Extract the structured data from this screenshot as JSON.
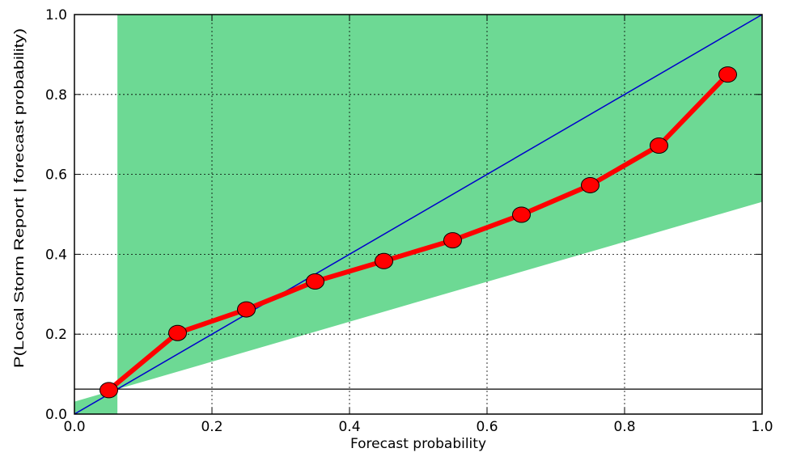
{
  "chart_data": {
    "type": "line",
    "xlabel": "Forecast probability",
    "ylabel": "P(Local Storm Report | forecast probability)",
    "xlim": [
      0.0,
      1.0
    ],
    "ylim": [
      0.0,
      1.0
    ],
    "grid": true,
    "x_ticks": [
      "0.0",
      "0.2",
      "0.4",
      "0.6",
      "0.8",
      "1.0"
    ],
    "y_ticks": [
      "0.0",
      "0.2",
      "0.4",
      "0.6",
      "0.8",
      "1.0"
    ],
    "series": [
      {
        "x": [
          0.05,
          0.15,
          0.25,
          0.35,
          0.45,
          0.55,
          0.65,
          0.75,
          0.85,
          0.95
        ],
        "values": [
          0.06,
          0.203,
          0.262,
          0.332,
          0.383,
          0.435,
          0.499,
          0.573,
          0.672,
          0.85
        ],
        "color": "#ff0000"
      }
    ],
    "reference_lines": {
      "perfect_reliability": {
        "points": [
          [
            0,
            0
          ],
          [
            1,
            1
          ]
        ],
        "color": "#0000cc"
      },
      "climatology": {
        "y": 0.0625,
        "color": "#000000"
      }
    },
    "skill_region": {
      "color": "#6dd994",
      "vertical_x": 0.0625,
      "no_skill_line_points": [
        [
          0,
          0.03125
        ],
        [
          1,
          0.53125
        ]
      ]
    }
  }
}
